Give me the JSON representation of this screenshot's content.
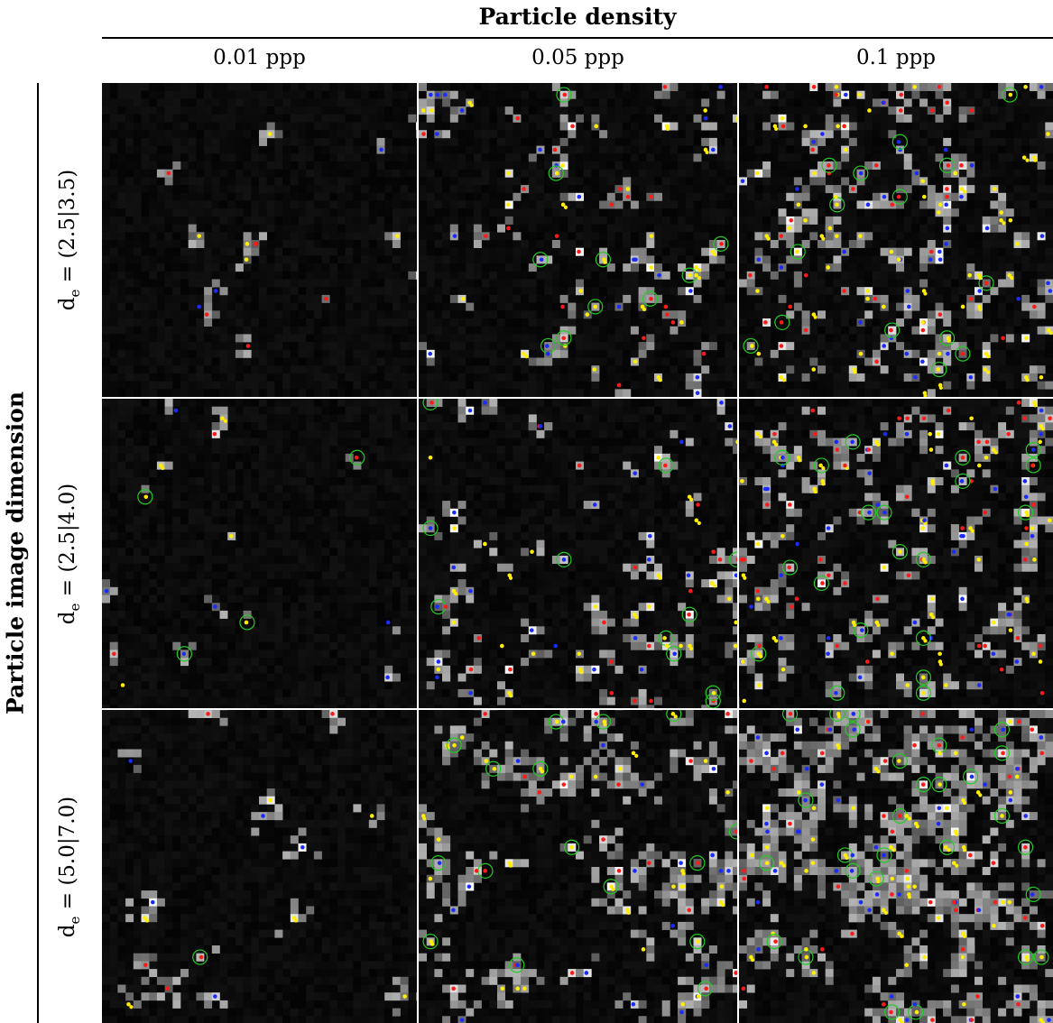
{
  "figure": {
    "column_title": "Particle density",
    "row_title": "Particle image dimension",
    "columns": [
      {
        "label": "0.01 ppp",
        "density": 0.01
      },
      {
        "label": "0.05 ppp",
        "density": 0.05
      },
      {
        "label": "0.1 ppp",
        "density": 0.1
      }
    ],
    "rows": [
      {
        "prefix": "d",
        "sub": "e",
        "rest": " = (2.5|3.5)",
        "size": 2.5
      },
      {
        "prefix": "d",
        "sub": "e",
        "rest": " = (2.5|4.0)",
        "size": 2.5
      },
      {
        "prefix": "d",
        "sub": "e",
        "rest": " = (5.0|7.0)",
        "size": 5.0
      }
    ],
    "marker_colors": {
      "red": "#ff1a1a",
      "blue": "#1a2bff",
      "yellow": "#ffee00",
      "circle": "#22cc22"
    }
  }
}
